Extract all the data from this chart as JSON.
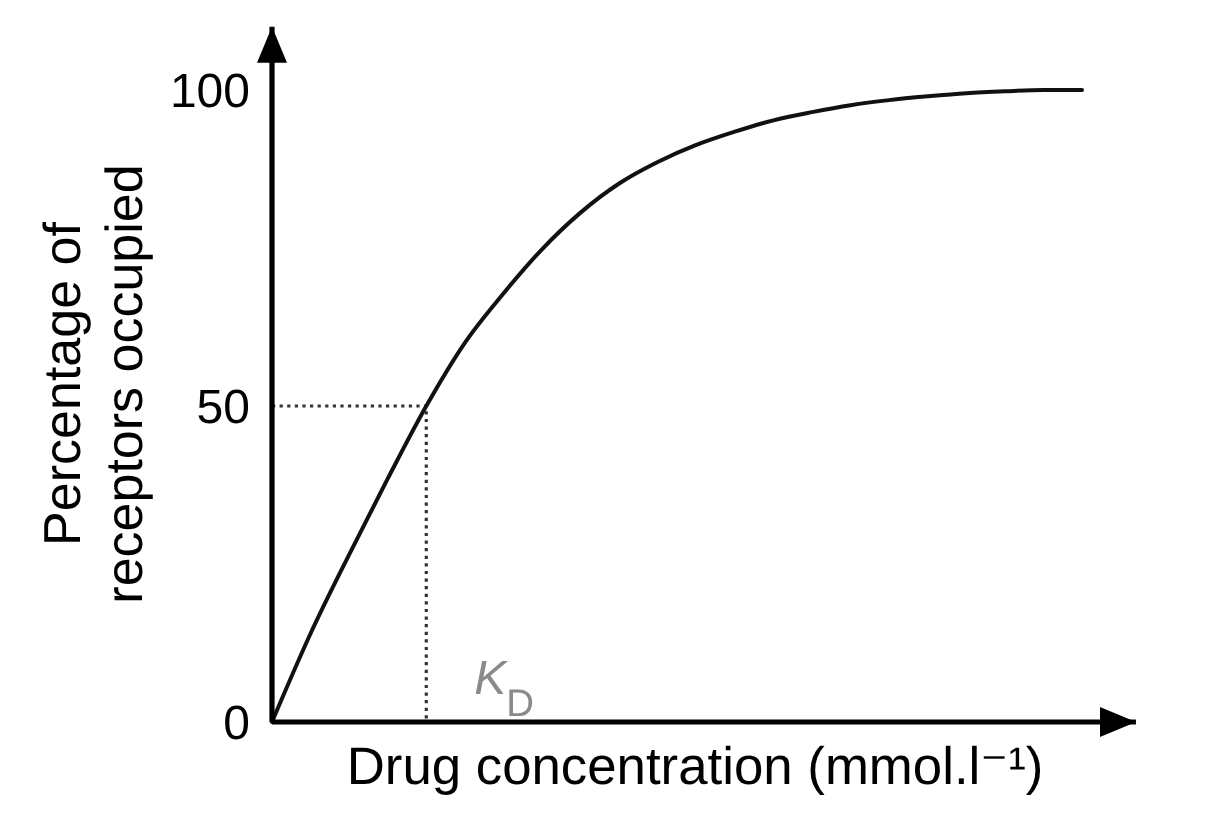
{
  "chart_data": {
    "type": "line",
    "categories": [
      null,
      null,
      null,
      null,
      null,
      null,
      null,
      null,
      null,
      null,
      null,
      null,
      null,
      null,
      null,
      null,
      null,
      null,
      null,
      null,
      null,
      null
    ],
    "values": [
      0,
      14,
      26.5,
      38.5,
      50,
      60,
      67.8,
      74.8,
      80.6,
      85.2,
      88.6,
      91.3,
      93.4,
      95.2,
      96.5,
      97.6,
      98.4,
      99,
      99.5,
      99.8,
      100,
      100
    ],
    "color": "#111111",
    "ylabel": "Percentage of receptors occupied",
    "xlabel": "Drug concentration (mmol.l⁻¹)",
    "ylim": [
      0,
      110
    ],
    "yticks": [
      0,
      50,
      100
    ],
    "tick_labels": "y",
    "ref_lines": [
      {
        "axis": "y",
        "value": 50,
        "line_style": "dotted",
        "color": "#333333"
      }
    ],
    "annotations": [
      "K$_{D}$"
    ]
  }
}
